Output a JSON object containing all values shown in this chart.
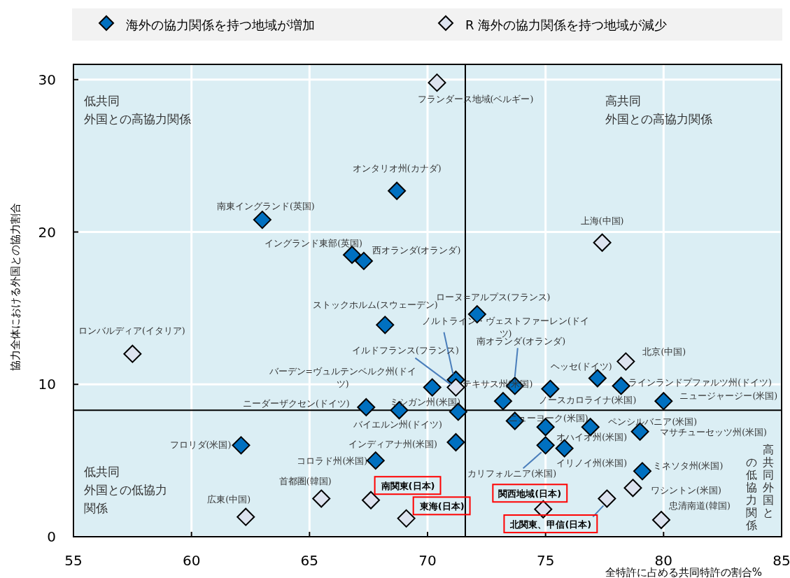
{
  "chart_data": {
    "type": "scatter",
    "xlabel": "全特許に占める共同特許の割合%",
    "ylabel": "協力全体における外国との協力割合",
    "xlim": [
      55,
      85
    ],
    "ylim": [
      0,
      31
    ],
    "xticks": [
      55,
      60,
      65,
      70,
      75,
      80,
      85
    ],
    "yticks": [
      0,
      10,
      20,
      30
    ],
    "grid": true,
    "marker": "diamond",
    "legend": "top",
    "ref_lines": [
      {
        "axis": "x",
        "value": 71.6,
        "color": "#000000"
      },
      {
        "axis": "y",
        "value": 8.3,
        "color": "#000000"
      }
    ],
    "annotations": [
      "低共同外国との高協力関係",
      "高共同外国との高協力関係",
      "低共同外国との低協力関係",
      "高共同外国と",
      "の低協力関係"
    ],
    "series": [
      {
        "name": "海外の協力関係を持つ地域が増加",
        "color": "#0070c0",
        "x": [
          68.7,
          63.0,
          66.8,
          67.3,
          68.2,
          72.1,
          71.2,
          70.2,
          73.7,
          73.2,
          71.3,
          67.4,
          68.8,
          71.2,
          62.1,
          67.8,
          77.2,
          75.2,
          78.2,
          80.0,
          73.7,
          75.0,
          76.9,
          79.0,
          75.0,
          75.8,
          79.1
        ],
        "values": [
          22.7,
          20.8,
          18.5,
          18.1,
          13.9,
          14.6,
          10.3,
          9.8,
          9.9,
          8.9,
          8.2,
          8.5,
          8.3,
          6.2,
          6.0,
          5.0,
          10.4,
          9.7,
          9.9,
          8.9,
          7.6,
          7.2,
          7.2,
          6.9,
          6.0,
          5.8,
          4.3
        ],
        "value_labels": [
          "オンタリオ州(カナダ)",
          "南東イングランド(英国)",
          "イングランド東部(英国)",
          "西オランダ(オランダ)",
          "ストックホルム(スウェーデン)",
          "ローヌ=アルプス(フランス)",
          "ノルトライン・ヴェストファーレン(ドイツ)",
          "バーデン=ヴュルテンベルク州(ドイツ)",
          "南オランダ(オランダ)",
          "テキサス州(米国)",
          "ミシガン州(米国)",
          "ニーダーザクセン(ドイツ)",
          "バイエルン州(ドイツ)",
          "インディアナ州(米国)",
          "フロリダ(米国)",
          "コロラド州(米国)",
          "ヘッセ(ドイツ)",
          "ノースカロライナ(米国)",
          "ラインランドプファルツ州(ドイツ)",
          "ニュージャージー(米国)",
          "ニューヨーク(米国)",
          "オハイオ州(米国)",
          "ペンシルバニア(米国)",
          "マサチューセッツ州(米国)",
          "カリフォルニア(米国)",
          "イリノイ州(米国)",
          "ミネソタ州(米国)"
        ]
      },
      {
        "name": "R 海外の協力関係を持つ地域が減少",
        "color": "#dde3ef",
        "x": [
          70.4,
          77.4,
          57.5,
          71.2,
          78.4,
          65.5,
          62.3,
          67.6,
          69.1,
          74.9,
          77.6,
          78.7,
          79.9
        ],
        "values": [
          29.8,
          19.3,
          12.0,
          9.8,
          11.5,
          2.5,
          1.3,
          2.4,
          1.2,
          1.8,
          2.5,
          3.2,
          1.1
        ],
        "value_labels": [
          "フランダース地域(ベルギー)",
          "上海(中国)",
          "ロンバルディア(イタリア)",
          "イルドフランス(フランス)",
          "北京(中国)",
          "首都圏(韓国)",
          "広東(中国)",
          "南関東(日本)",
          "東海(日本)",
          "関西地域(日本)",
          "北関東、甲信(日本)",
          "ワシントン(米国)",
          "忠清南道(韓国)"
        ]
      }
    ]
  }
}
